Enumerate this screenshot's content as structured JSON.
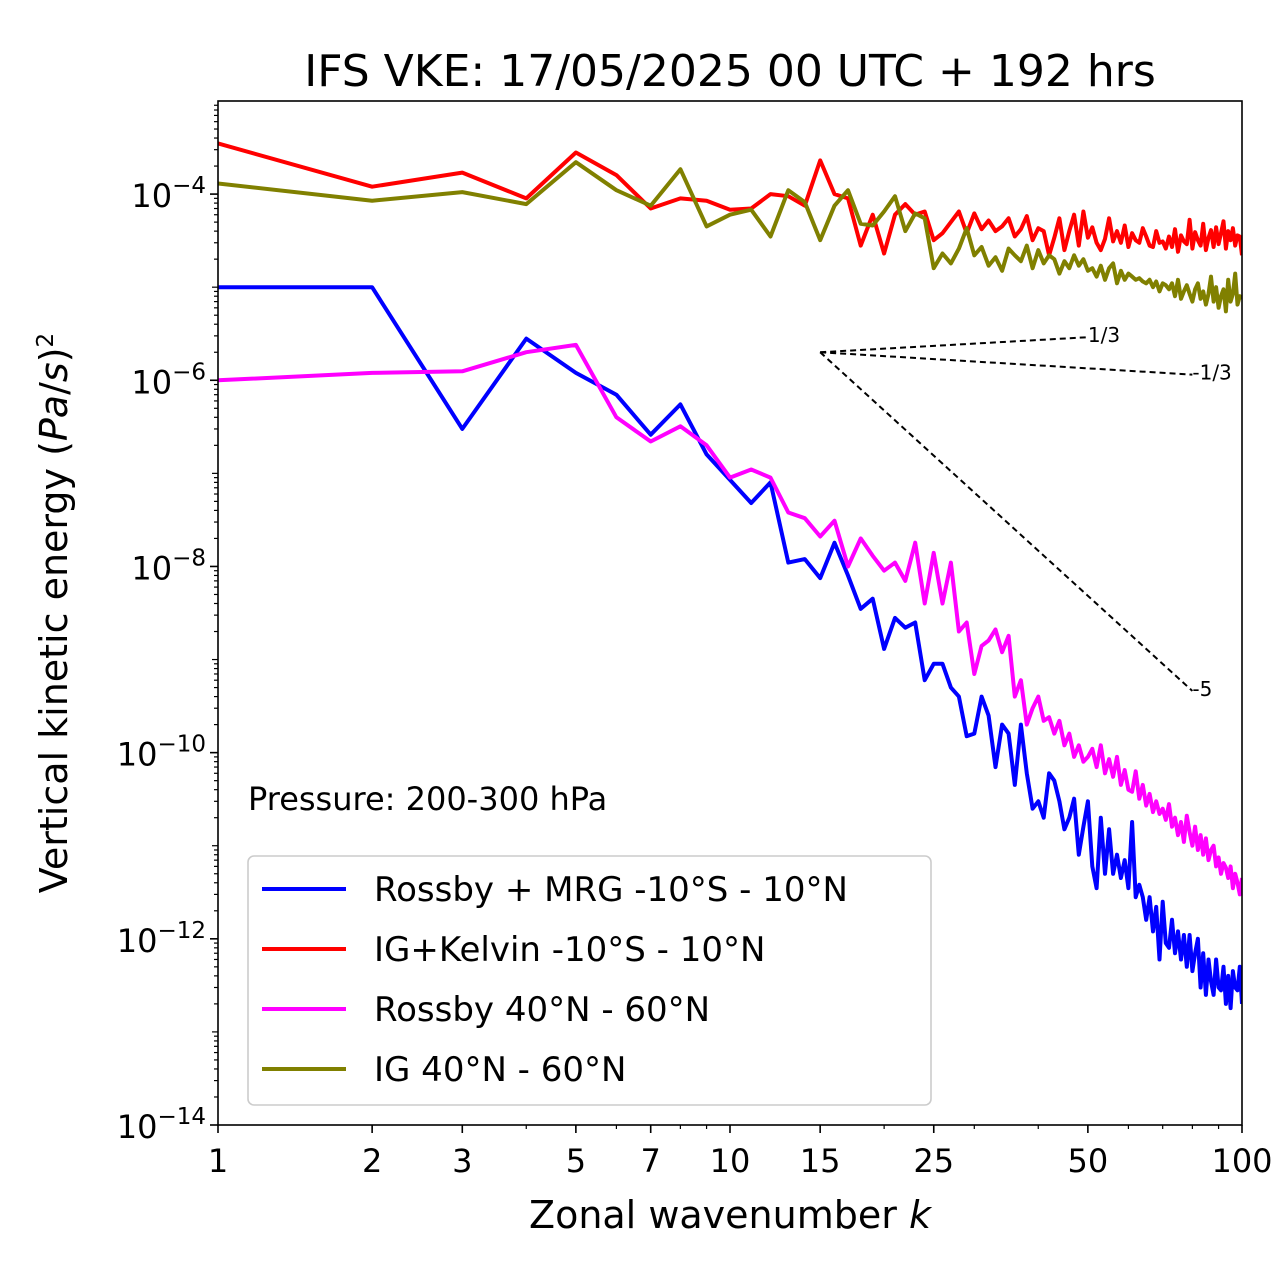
{
  "chart_data": {
    "type": "line",
    "title": "IFS VKE: 17/05/2025 00 UTC + 192 hrs",
    "xlabel_text": "Zonal wavenumber ",
    "xlabel_var": "k",
    "ylabel": "Vertical kinetic energy (Pa/s)^2",
    "x_scale": "log",
    "y_scale": "log",
    "xlim": [
      1,
      100
    ],
    "ylim": [
      1e-14,
      0.001
    ],
    "grid": false,
    "legend_location": "lower-left",
    "x_ticks": [
      1,
      2,
      3,
      5,
      7,
      10,
      15,
      25,
      50,
      100
    ],
    "x_tick_labels": [
      "1",
      "2",
      "3",
      "5",
      "7",
      "10",
      "15",
      "25",
      "50",
      "100"
    ],
    "y_ticks": [
      {
        "value": 0.0001,
        "base": "10",
        "exp": "−4"
      },
      {
        "value": 1e-06,
        "base": "10",
        "exp": "−6"
      },
      {
        "value": 1e-08,
        "base": "10",
        "exp": "−8"
      },
      {
        "value": 1e-10,
        "base": "10",
        "exp": "−10"
      },
      {
        "value": 1e-12,
        "base": "10",
        "exp": "−12"
      },
      {
        "value": 1e-14,
        "base": "10",
        "exp": "−14"
      }
    ],
    "annotation": "Pressure: 200-300 hPa",
    "reference_slopes": [
      {
        "label": "1/3",
        "x_start": 15,
        "x_end": 50,
        "y_start": 2e-06,
        "y_end": 2.9e-06
      },
      {
        "label": "-1/3",
        "x_start": 15,
        "x_end": 80,
        "y_start": 2e-06,
        "y_end": 1.15e-06
      },
      {
        "label": "-5",
        "x_start": 15,
        "x_end": 80,
        "y_start": 2e-06,
        "y_end": 4.6e-10
      }
    ],
    "series": [
      {
        "name": "Rossby + MRG -10°S - 10°N",
        "color": "#0000ff",
        "x": [
          1,
          2,
          3,
          4,
          5,
          6,
          7,
          8,
          9,
          10,
          11,
          12,
          13,
          14,
          15,
          16,
          17,
          18,
          19,
          20,
          21,
          22,
          23,
          24,
          25,
          26,
          27,
          28,
          29,
          30,
          31,
          32,
          33,
          34,
          35,
          36,
          37,
          38,
          39,
          40,
          41,
          42,
          43,
          44,
          45,
          46,
          47,
          48,
          49,
          50,
          51,
          52,
          53,
          54,
          55,
          56,
          57,
          58,
          59,
          60,
          61,
          62,
          63,
          64,
          65,
          66,
          67,
          68,
          69,
          70,
          71,
          72,
          73,
          74,
          75,
          76,
          77,
          78,
          79,
          80,
          81,
          82,
          83,
          84,
          85,
          86,
          87,
          88,
          89,
          90,
          91,
          92,
          93,
          94,
          95,
          96,
          97,
          98,
          99,
          100
        ],
        "y": [
          1e-05,
          1e-05,
          3e-07,
          2.8e-06,
          1.2e-06,
          7e-07,
          2.6e-07,
          5.5e-07,
          1.6e-07,
          8.5e-08,
          4.8e-08,
          8e-08,
          1.1e-08,
          1.2e-08,
          7.5e-09,
          1.8e-08,
          8e-09,
          3.5e-09,
          4.5e-09,
          1.3e-09,
          2.8e-09,
          2.2e-09,
          2.5e-09,
          6e-10,
          9e-10,
          9e-10,
          5e-10,
          4e-10,
          1.5e-10,
          1.6e-10,
          4e-10,
          2.5e-10,
          7e-11,
          2e-10,
          1.6e-10,
          4.5e-11,
          2e-10,
          6e-11,
          2.5e-11,
          3e-11,
          2e-11,
          6e-11,
          5e-11,
          3e-11,
          1.5e-11,
          2e-11,
          3.2e-11,
          8e-12,
          1.6e-11,
          3e-11,
          6e-12,
          3.5e-12,
          2e-11,
          5e-12,
          1.5e-11,
          5e-12,
          8e-12,
          4.5e-12,
          7e-12,
          3.5e-12,
          1.8e-11,
          2.8e-12,
          3.8e-12,
          2.8e-12,
          1.6e-12,
          2.8e-12,
          1.2e-12,
          2.2e-12,
          6e-13,
          2.5e-12,
          9e-13,
          8e-13,
          1.6e-12,
          7e-13,
          1.2e-12,
          6e-13,
          1.1e-12,
          5e-13,
          1.1e-12,
          4.5e-13,
          7e-13,
          1e-12,
          3e-13,
          7e-13,
          2.5e-13,
          6e-13,
          3.5e-13,
          2.5e-13,
          6e-13,
          3e-13,
          2.8e-13,
          5e-13,
          2e-13,
          4e-13,
          1.8e-13,
          4.5e-13,
          3e-13,
          2.8e-13,
          5e-13,
          2e-13
        ]
      },
      {
        "name": "IG+Kelvin -10°S - 10°N",
        "color": "#ff0000",
        "x": [
          1,
          2,
          3,
          4,
          5,
          6,
          7,
          8,
          9,
          10,
          11,
          12,
          13,
          14,
          15,
          16,
          17,
          18,
          19,
          20,
          21,
          22,
          23,
          24,
          25,
          26,
          27,
          28,
          29,
          30,
          31,
          32,
          33,
          34,
          35,
          36,
          37,
          38,
          39,
          40,
          41,
          42,
          43,
          44,
          45,
          46,
          47,
          48,
          49,
          50,
          51,
          52,
          53,
          54,
          55,
          56,
          57,
          58,
          59,
          60,
          61,
          62,
          63,
          64,
          65,
          66,
          67,
          68,
          69,
          70,
          71,
          72,
          73,
          74,
          75,
          76,
          77,
          78,
          79,
          80,
          81,
          82,
          83,
          84,
          85,
          86,
          87,
          88,
          89,
          90,
          91,
          92,
          93,
          94,
          95,
          96,
          97,
          98,
          99,
          100
        ],
        "y": [
          0.00035,
          0.00012,
          0.00017,
          9e-05,
          0.00028,
          0.00016,
          7e-05,
          9e-05,
          8.5e-05,
          6.8e-05,
          7e-05,
          0.0001,
          9.5e-05,
          7.5e-05,
          0.00023,
          0.0001,
          9e-05,
          2.8e-05,
          6e-05,
          2.3e-05,
          6e-05,
          7.8e-05,
          6e-05,
          6.5e-05,
          3.2e-05,
          3.8e-05,
          5e-05,
          6.5e-05,
          3.8e-05,
          6.2e-05,
          4.2e-05,
          5.2e-05,
          4e-05,
          4.5e-05,
          5.5e-05,
          3.5e-05,
          4.2e-05,
          5.8e-05,
          3.2e-05,
          4.3e-05,
          4e-05,
          2.2e-05,
          3.4e-05,
          5.5e-05,
          2.5e-05,
          4e-05,
          6e-05,
          2.8e-05,
          6.5e-05,
          3.4e-05,
          4.4e-05,
          3e-05,
          2.5e-05,
          3.3e-05,
          5.5e-05,
          3.1e-05,
          4e-05,
          3e-05,
          4.6e-05,
          2.7e-05,
          3.8e-05,
          3.2e-05,
          3e-05,
          4.3e-05,
          3.5e-05,
          2.8e-05,
          2.7e-05,
          4e-05,
          3e-05,
          3.1e-05,
          2.6e-05,
          3.5e-05,
          2.7e-05,
          4.2e-05,
          2.4e-05,
          3.6e-05,
          3.1e-05,
          2.9e-05,
          5.3e-05,
          2.6e-05,
          3.9e-05,
          3.2e-05,
          2.8e-05,
          4.8e-05,
          2.5e-05,
          3.4e-05,
          4.1e-05,
          2.7e-05,
          4.4e-05,
          2.9e-05,
          3.8e-05,
          5.1e-05,
          2.6e-05,
          4e-05,
          3.2e-05,
          4.3e-05,
          2.8e-05,
          3.6e-05,
          3.5e-05,
          2.2e-05
        ]
      },
      {
        "name": "Rossby 40°N - 60°N",
        "color": "#ff00ff",
        "x": [
          1,
          2,
          3,
          4,
          5,
          6,
          7,
          8,
          9,
          10,
          11,
          12,
          13,
          14,
          15,
          16,
          17,
          18,
          19,
          20,
          21,
          22,
          23,
          24,
          25,
          26,
          27,
          28,
          29,
          30,
          31,
          32,
          33,
          34,
          35,
          36,
          37,
          38,
          39,
          40,
          41,
          42,
          43,
          44,
          45,
          46,
          47,
          48,
          49,
          50,
          51,
          52,
          53,
          54,
          55,
          56,
          57,
          58,
          59,
          60,
          61,
          62,
          63,
          64,
          65,
          66,
          67,
          68,
          69,
          70,
          71,
          72,
          73,
          74,
          75,
          76,
          77,
          78,
          79,
          80,
          81,
          82,
          83,
          84,
          85,
          86,
          87,
          88,
          89,
          90,
          91,
          92,
          93,
          94,
          95,
          96,
          97,
          98,
          99,
          100
        ],
        "y": [
          1e-06,
          1.2e-06,
          1.25e-06,
          2e-06,
          2.4e-06,
          4e-07,
          2.2e-07,
          3.2e-07,
          2e-07,
          9e-08,
          1.1e-07,
          9e-08,
          3.8e-08,
          3.3e-08,
          2.1e-08,
          3.1e-08,
          1e-08,
          2e-08,
          1.3e-08,
          9e-09,
          1.1e-08,
          7e-09,
          1.8e-08,
          4e-09,
          1.4e-08,
          4e-09,
          1.1e-08,
          2e-09,
          2.5e-09,
          7e-10,
          1.4e-09,
          1.6e-09,
          2.1e-09,
          1.2e-09,
          1.8e-09,
          4e-10,
          6e-10,
          2e-10,
          3e-10,
          4e-10,
          2.2e-10,
          2.4e-10,
          1.6e-10,
          2.2e-10,
          1.2e-10,
          1.6e-10,
          9e-11,
          1.2e-10,
          8e-11,
          9e-11,
          1.1e-10,
          7e-11,
          1.2e-10,
          6e-11,
          8.5e-11,
          5.5e-11,
          9e-11,
          4.5e-11,
          6.5e-11,
          4e-11,
          3.8e-11,
          6.3e-11,
          3.2e-11,
          4.5e-11,
          2.7e-11,
          3.6e-11,
          2.3e-11,
          3e-11,
          2.2e-11,
          2.5e-11,
          1.9e-11,
          2.8e-11,
          1.6e-11,
          2e-11,
          1.3e-11,
          1.8e-11,
          1.1e-11,
          2.1e-11,
          1.4e-11,
          1e-11,
          1.6e-11,
          9e-12,
          1.3e-11,
          8e-12,
          1.2e-11,
          7e-12,
          9e-12,
          1e-11,
          6e-12,
          7.5e-12,
          5e-12,
          6.5e-12,
          5.8e-12,
          4.5e-12,
          6e-12,
          3.5e-12,
          5e-12,
          4e-12,
          3e-12,
          4.5e-12
        ]
      },
      {
        "name": "IG 40°N - 60°N",
        "color": "#808000",
        "x": [
          1,
          2,
          3,
          4,
          5,
          6,
          7,
          8,
          9,
          10,
          11,
          12,
          13,
          14,
          15,
          16,
          17,
          18,
          19,
          20,
          21,
          22,
          23,
          24,
          25,
          26,
          27,
          28,
          29,
          30,
          31,
          32,
          33,
          34,
          35,
          36,
          37,
          38,
          39,
          40,
          41,
          42,
          43,
          44,
          45,
          46,
          47,
          48,
          49,
          50,
          51,
          52,
          53,
          54,
          55,
          56,
          57,
          58,
          59,
          60,
          61,
          62,
          63,
          64,
          65,
          66,
          67,
          68,
          69,
          70,
          71,
          72,
          73,
          74,
          75,
          76,
          77,
          78,
          79,
          80,
          81,
          82,
          83,
          84,
          85,
          86,
          87,
          88,
          89,
          90,
          91,
          92,
          93,
          94,
          95,
          96,
          97,
          98,
          99,
          100
        ],
        "y": [
          0.00013,
          8.5e-05,
          0.000105,
          7.8e-05,
          0.00022,
          0.00011,
          7.5e-05,
          0.000185,
          4.5e-05,
          6e-05,
          6.8e-05,
          3.5e-05,
          0.00011,
          8.2e-05,
          3.2e-05,
          7.5e-05,
          0.00011,
          4.8e-05,
          4.6e-05,
          6.5e-05,
          9.5e-05,
          4e-05,
          6.2e-05,
          5.5e-05,
          1.6e-05,
          2.3e-05,
          1.8e-05,
          2.6e-05,
          4.3e-05,
          2.2e-05,
          2.7e-05,
          1.7e-05,
          2.1e-05,
          1.5e-05,
          2.6e-05,
          2.2e-05,
          1.9e-05,
          2.8e-05,
          1.6e-05,
          2.5e-05,
          1.8e-05,
          2.2e-05,
          2e-05,
          1.4e-05,
          1.9e-05,
          1.6e-05,
          2.2e-05,
          1.7e-05,
          2e-05,
          1.5e-05,
          1.6e-05,
          1.3e-05,
          1.7e-05,
          1.2e-05,
          1.6e-05,
          1.8e-05,
          1.1e-05,
          1.5e-05,
          1.2e-05,
          1.4e-05,
          1.3e-05,
          1.2e-05,
          1.25e-05,
          1.15e-05,
          1.1e-05,
          1.2e-05,
          1e-05,
          1.15e-05,
          9e-06,
          1.1e-05,
          1.05e-05,
          9.5e-06,
          1.1e-05,
          8e-06,
          1.2e-05,
          7.5e-06,
          9e-06,
          1.05e-05,
          8.5e-06,
          7e-06,
          9.5e-06,
          1.1e-05,
          7.5e-06,
          9e-06,
          6.5e-06,
          8.5e-06,
          1.3e-05,
          7e-06,
          1e-05,
          6e-06,
          8e-06,
          9.5e-06,
          5.5e-06,
          1.2e-05,
          7e-06,
          8.5e-06,
          1.4e-05,
          6.5e-06,
          8e-06,
          7.5e-06
        ]
      }
    ]
  }
}
